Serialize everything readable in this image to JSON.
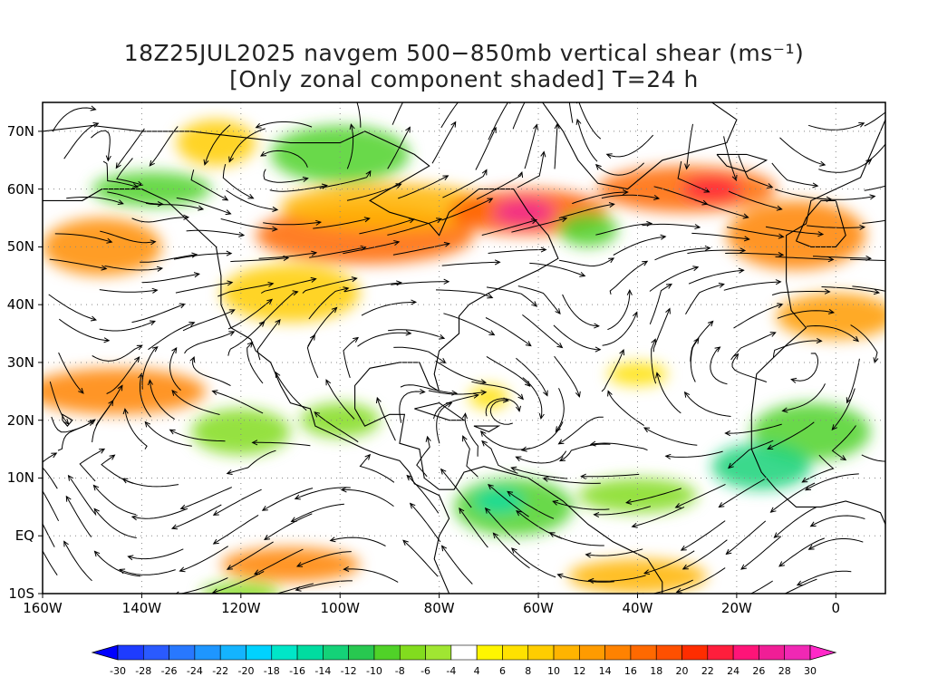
{
  "title": {
    "line1": "18Z25JUL2025 navgem 500−850mb vertical shear (ms⁻¹)",
    "line2": "[Only zonal component shaded] T=24 h"
  },
  "y_axis": {
    "labels": [
      "70N",
      "60N",
      "50N",
      "40N",
      "30N",
      "20N",
      "10N",
      "EQ",
      "10S"
    ],
    "lats": [
      70,
      60,
      50,
      40,
      30,
      20,
      10,
      0,
      -10
    ]
  },
  "x_axis": {
    "labels": [
      "160W",
      "140W",
      "120W",
      "100W",
      "80W",
      "60W",
      "40W",
      "20W",
      "0"
    ],
    "lons": [
      -160,
      -140,
      -120,
      -100,
      -80,
      -60,
      -40,
      -20,
      0
    ]
  },
  "map_extent": {
    "lon": [
      -160,
      10
    ],
    "lat": [
      -10,
      75
    ]
  },
  "colorbar": {
    "labels": [
      "-30",
      "-28",
      "-26",
      "-24",
      "-22",
      "-20",
      "-18",
      "-16",
      "-14",
      "-12",
      "-10",
      "-8",
      "-6",
      "-4",
      "4",
      "6",
      "8",
      "10",
      "12",
      "14",
      "16",
      "18",
      "20",
      "22",
      "24",
      "26",
      "28",
      "30"
    ],
    "colors": [
      "#1e3cff",
      "#2a5aff",
      "#2878ff",
      "#1e96ff",
      "#14b4ff",
      "#00d2ff",
      "#00e6c8",
      "#00dca0",
      "#14d278",
      "#28c850",
      "#50d228",
      "#82dc1e",
      "#a0e632",
      "#ffffff",
      "#fff500",
      "#ffe100",
      "#ffcd00",
      "#ffb400",
      "#ff9b00",
      "#ff8200",
      "#ff6900",
      "#ff5000",
      "#ff2d00",
      "#ff1e3c",
      "#ff1478",
      "#f01e96",
      "#f028b4"
    ],
    "end_left": "#0000ff",
    "end_right": "#ff28c8"
  },
  "shading": [
    {
      "lon": -148,
      "lat": 50,
      "rx": 12,
      "ry": 5,
      "color": "#ff8c00"
    },
    {
      "lon": -138,
      "lat": 60,
      "rx": 12,
      "ry": 3,
      "color": "#50d228"
    },
    {
      "lon": -125,
      "lat": 68,
      "rx": 8,
      "ry": 4,
      "color": "#ffcd00"
    },
    {
      "lon": -100,
      "lat": 66,
      "rx": 14,
      "ry": 5,
      "color": "#50d228"
    },
    {
      "lon": -95,
      "lat": 52,
      "rx": 22,
      "ry": 5,
      "color": "#ff6900"
    },
    {
      "lon": -90,
      "lat": 57,
      "rx": 22,
      "ry": 4,
      "color": "#ffb400"
    },
    {
      "lon": -62,
      "lat": 56,
      "rx": 16,
      "ry": 4,
      "color": "#ff5a00"
    },
    {
      "lon": -63,
      "lat": 56,
      "rx": 6,
      "ry": 2,
      "color": "#f01e96"
    },
    {
      "lon": -50,
      "lat": 53,
      "rx": 6,
      "ry": 3,
      "color": "#50d228"
    },
    {
      "lon": -30,
      "lat": 60,
      "rx": 18,
      "ry": 4,
      "color": "#ff6900"
    },
    {
      "lon": -25,
      "lat": 60,
      "rx": 6,
      "ry": 2,
      "color": "#ff1e3c"
    },
    {
      "lon": -8,
      "lat": 52,
      "rx": 14,
      "ry": 6,
      "color": "#ff8200"
    },
    {
      "lon": 0,
      "lat": 38,
      "rx": 12,
      "ry": 4,
      "color": "#ff9b00"
    },
    {
      "lon": -110,
      "lat": 42,
      "rx": 14,
      "ry": 5,
      "color": "#ffcd00"
    },
    {
      "lon": -145,
      "lat": 25,
      "rx": 18,
      "ry": 4,
      "color": "#ff8200"
    },
    {
      "lon": -120,
      "lat": 18,
      "rx": 10,
      "ry": 4,
      "color": "#82dc1e"
    },
    {
      "lon": -100,
      "lat": 20,
      "rx": 8,
      "ry": 3,
      "color": "#82dc1e"
    },
    {
      "lon": -65,
      "lat": 5,
      "rx": 12,
      "ry": 5,
      "color": "#50d228"
    },
    {
      "lon": -68,
      "lat": 6,
      "rx": 5,
      "ry": 2,
      "color": "#00dca0"
    },
    {
      "lon": -40,
      "lat": 7,
      "rx": 12,
      "ry": 3,
      "color": "#82dc1e"
    },
    {
      "lon": -5,
      "lat": 18,
      "rx": 12,
      "ry": 5,
      "color": "#50d228"
    },
    {
      "lon": -15,
      "lat": 12,
      "rx": 10,
      "ry": 4,
      "color": "#14d278"
    },
    {
      "lon": -110,
      "lat": -5,
      "rx": 14,
      "ry": 3,
      "color": "#ff8200"
    },
    {
      "lon": -40,
      "lat": -7,
      "rx": 14,
      "ry": 3,
      "color": "#ffb400"
    },
    {
      "lon": -120,
      "lat": -10,
      "rx": 8,
      "ry": 2,
      "color": "#82dc1e"
    },
    {
      "lon": -70,
      "lat": 24,
      "rx": 4,
      "ry": 2,
      "color": "#ffe100"
    },
    {
      "lon": -40,
      "lat": 28,
      "rx": 6,
      "ry": 2,
      "color": "#ffe100"
    }
  ]
}
